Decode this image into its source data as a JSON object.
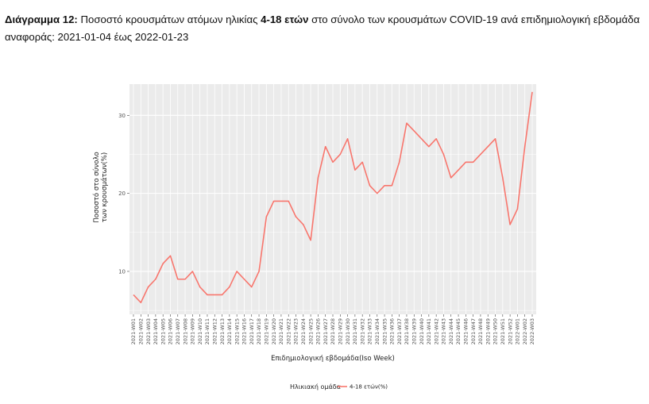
{
  "caption": {
    "prefix": "Διάγραμμα 12:",
    "part1": "Ποσοστό κρουσμάτων ατόμων ηλικίας",
    "bold_range": "4-18 ετών",
    "part2": "στο σύνολο των κρουσμάτων COVID-19 ανά επιδημιολογική εβδομάδα",
    "line2": "αναφοράς: 2021-01-04 έως 2022-01-23"
  },
  "chart_data": {
    "type": "line",
    "xlabel": "Επιδημιολογική εβδομάδα(Iso Week)",
    "ylabel_lines": [
      "Ποσοστό στο σύνολο",
      "των κρουσμάτων(%)"
    ],
    "ylim": [
      4.5,
      34
    ],
    "yticks": [
      10,
      20,
      30
    ],
    "grid": true,
    "legend_position": "bottom",
    "legend_title": "Ηλικιακή ομάδα",
    "color": "#f8766d",
    "categories": [
      "2021-W01",
      "2021-W02",
      "2021-W03",
      "2021-W04",
      "2021-W05",
      "2021-W06",
      "2021-W07",
      "2021-W08",
      "2021-W09",
      "2021-W10",
      "2021-W11",
      "2021-W12",
      "2021-W13",
      "2021-W14",
      "2021-W15",
      "2021-W16",
      "2021-W17",
      "2021-W18",
      "2021-W19",
      "2021-W20",
      "2021-W21",
      "2021-W22",
      "2021-W23",
      "2021-W24",
      "2021-W25",
      "2021-W26",
      "2021-W27",
      "2021-W28",
      "2021-W29",
      "2021-W30",
      "2021-W31",
      "2021-W32",
      "2021-W33",
      "2021-W34",
      "2021-W35",
      "2021-W36",
      "2021-W37",
      "2021-W38",
      "2021-W39",
      "2021-W40",
      "2021-W41",
      "2021-W42",
      "2021-W43",
      "2021-W44",
      "2021-W45",
      "2021-W46",
      "2021-W47",
      "2021-W48",
      "2021-W49",
      "2021-W50",
      "2021-W51",
      "2021-W52",
      "2022-W01",
      "2022-W02",
      "2022-W03"
    ],
    "series": [
      {
        "name": "4-18 ετών(%)",
        "values": [
          7,
          6,
          8,
          9,
          11,
          12,
          9,
          9,
          10,
          8,
          7,
          7,
          7,
          8,
          10,
          9,
          8,
          10,
          17,
          19,
          19,
          19,
          17,
          16,
          14,
          22,
          26,
          24,
          25,
          27,
          23,
          24,
          21,
          20,
          21,
          21,
          24,
          29,
          28,
          27,
          26,
          27,
          25,
          22,
          23,
          24,
          24,
          25,
          26,
          27,
          22,
          16,
          18,
          26,
          33
        ]
      }
    ]
  }
}
